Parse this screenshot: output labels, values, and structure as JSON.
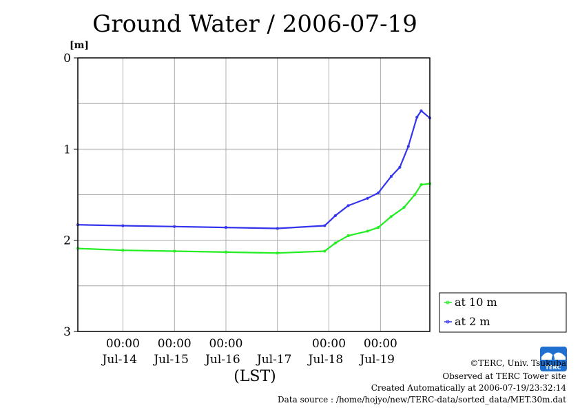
{
  "chart_data": {
    "type": "line",
    "title": "Ground Water / 2006-07-19",
    "ylabel_unit": "[m]",
    "xlabel": "(LST)",
    "ylim": [
      0,
      3
    ],
    "y_inverted": true,
    "y_ticks": [
      "0",
      "1",
      "2",
      "3"
    ],
    "x_range": [
      "2006-07-13T03:00",
      "2006-07-19T23:00"
    ],
    "x_time_ticks": [
      "00:00",
      "00:00",
      "00:00",
      "00:00",
      "00:00"
    ],
    "x_day_labels": [
      "Jul-14",
      "Jul-15",
      "Jul-16",
      "Jul-17",
      "Jul-18",
      "Jul-19"
    ],
    "grid": true,
    "legend_position": "right-bottom",
    "series": [
      {
        "name": "at 10 m",
        "color": "#22ee22",
        "points": [
          [
            "2006-07-13T03:00",
            2.09
          ],
          [
            "2006-07-14T00:00",
            2.11
          ],
          [
            "2006-07-15T00:00",
            2.12
          ],
          [
            "2006-07-16T00:00",
            2.13
          ],
          [
            "2006-07-17T00:00",
            2.14
          ],
          [
            "2006-07-17T22:00",
            2.12
          ],
          [
            "2006-07-18T03:00",
            2.03
          ],
          [
            "2006-07-18T09:00",
            1.95
          ],
          [
            "2006-07-18T18:00",
            1.9
          ],
          [
            "2006-07-18T23:00",
            1.86
          ],
          [
            "2006-07-19T05:00",
            1.74
          ],
          [
            "2006-07-19T11:00",
            1.64
          ],
          [
            "2006-07-19T16:00",
            1.5
          ],
          [
            "2006-07-19T19:00",
            1.39
          ],
          [
            "2006-07-19T23:00",
            1.38
          ]
        ]
      },
      {
        "name": "at 2 m",
        "color": "#3333ee",
        "points": [
          [
            "2006-07-13T03:00",
            1.83
          ],
          [
            "2006-07-14T00:00",
            1.84
          ],
          [
            "2006-07-15T00:00",
            1.85
          ],
          [
            "2006-07-16T00:00",
            1.86
          ],
          [
            "2006-07-17T00:00",
            1.87
          ],
          [
            "2006-07-17T22:00",
            1.84
          ],
          [
            "2006-07-18T03:00",
            1.73
          ],
          [
            "2006-07-18T09:00",
            1.62
          ],
          [
            "2006-07-18T18:00",
            1.54
          ],
          [
            "2006-07-18T23:00",
            1.48
          ],
          [
            "2006-07-19T05:00",
            1.3
          ],
          [
            "2006-07-19T09:00",
            1.2
          ],
          [
            "2006-07-19T13:00",
            0.97
          ],
          [
            "2006-07-19T17:00",
            0.65
          ],
          [
            "2006-07-19T19:00",
            0.58
          ],
          [
            "2006-07-19T23:00",
            0.66
          ]
        ]
      }
    ]
  },
  "credits": {
    "copyright": "©TERC, Univ. Tsukuba",
    "observed": "Observed at TERC Tower site",
    "created": "Created Automatically at 2006-07-19/23:32:14",
    "source": "Data source : /home/hojyo/new/TERC-data/sorted_data/MET.30m.dat"
  },
  "logo": {
    "text": "TERC",
    "color": "#1e6fd0"
  }
}
